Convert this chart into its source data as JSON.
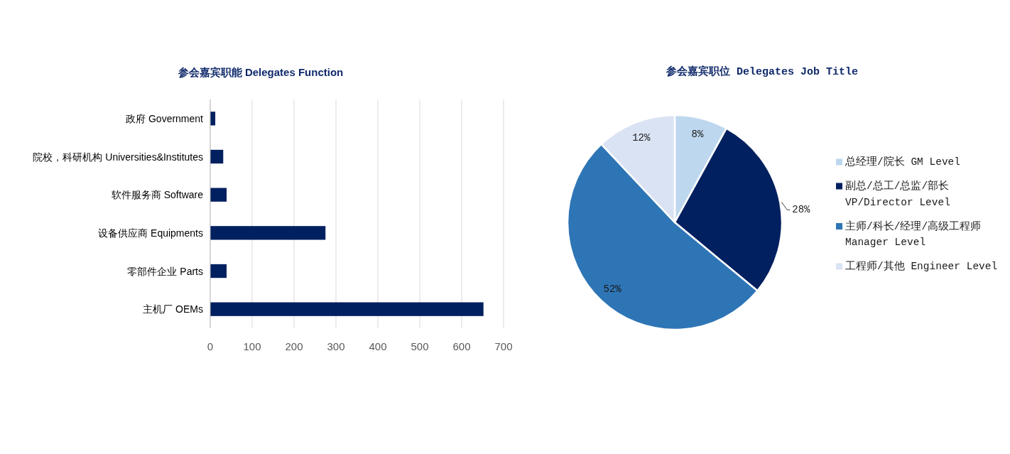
{
  "chart_data": [
    {
      "type": "bar",
      "orientation": "horizontal",
      "title": "参会嘉宾职能 Delegates Function",
      "categories": [
        "政府 Government",
        "院校，科研机构 Universities&Institutes",
        "软件服务商 Software",
        "设备供应商 Equipments",
        "零部件企业 Parts",
        "主机厂 OEMs"
      ],
      "values": [
        12,
        31,
        39,
        275,
        39,
        652
      ],
      "color": "#002060",
      "xlim": [
        0,
        700
      ],
      "xticks": [
        0,
        100,
        200,
        300,
        400,
        500,
        600,
        700
      ],
      "grid": "x"
    },
    {
      "type": "pie",
      "title": "参会嘉宾职位 Delegates Job Title",
      "categories": [
        "总经理/院长 GM Level",
        "副总/总工/总监/部长\nVP/Director Level",
        "主师/科长/经理/高级工程师\nManager Level",
        "工程师/其他 Engineer Level"
      ],
      "values": [
        8,
        28,
        52,
        12
      ],
      "colors": [
        "#bdd7ee",
        "#002060",
        "#2e75b6",
        "#dae3f3"
      ],
      "value_labels": [
        "8%",
        "28%",
        "52%",
        "12%"
      ],
      "legend": "right"
    }
  ]
}
